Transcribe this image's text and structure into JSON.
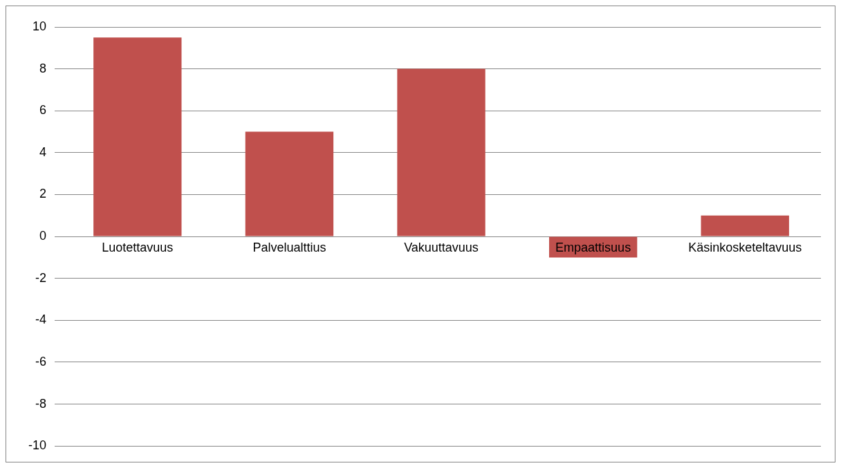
{
  "chart_data": {
    "type": "bar",
    "categories": [
      "Luotettavuus",
      "Palvelualttius",
      "Vakuuttavuus",
      "Empaattisuus",
      "Käsinkosketeltavuus"
    ],
    "values": [
      9.5,
      5,
      8,
      -1,
      1
    ],
    "color": "#c0504d",
    "ylim": [
      -10,
      10
    ],
    "yticks": [
      -10,
      -8,
      -6,
      -4,
      -2,
      0,
      2,
      4,
      6,
      8,
      10
    ],
    "grid": "y",
    "legend": false
  }
}
